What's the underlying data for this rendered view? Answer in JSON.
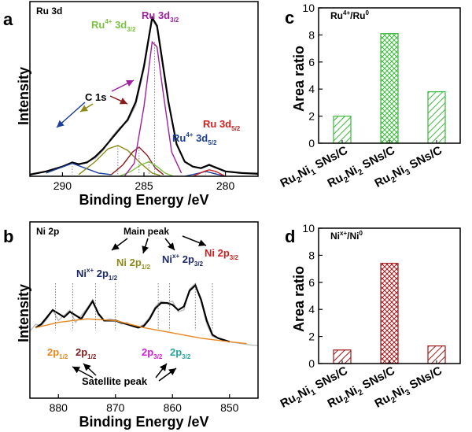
{
  "colors": {
    "ru_total": "#000000",
    "ru_4p_32": "#7cc242",
    "ru_0_32": "#a020a0",
    "ru_c1s": "#8b1a1a",
    "ru_olive": "#8b8b16",
    "ru_blue": "#1c3f9b",
    "ni_fit": "#000000",
    "ni_raw": "#bdbdbd",
    "ni_bg": "#e8871e",
    "ni_teal": "#2aa198",
    "ni_magenta": "#d020d0",
    "ni_dark": "#7a1a1a",
    "bar_green": "#3cb83c",
    "bar_red": "#a01818"
  },
  "panels": {
    "a": {
      "letter": "a",
      "corner_label": "Ru 3d",
      "ann_ru4_32_main": "Ru",
      "ann_ru4_32_sup": "4+",
      "ann_ru4_32_rest": " 3d",
      "ann_ru4_32_sub": "3/2",
      "ann_ru0_32_main": "Ru 3d",
      "ann_ru0_32_sub": "3/2",
      "ann_c1s": "C 1s",
      "ann_ru4_52_main": "Ru",
      "ann_ru4_52_sup": "4+",
      "ann_ru4_52_rest": " 3d",
      "ann_ru4_52_sub": "5/2",
      "ann_ru0_52_main": "Ru 3d",
      "ann_ru0_52_sub": "5/2"
    },
    "b": {
      "letter": "b",
      "corner_label": "Ni 2p",
      "ann_main_peak": "Main peak",
      "ann_nix_12_main": "Ni",
      "ann_nix_12_sup": "x+",
      "ann_nix_12_rest": " 2p",
      "ann_nix_12_sub": "1/2",
      "ann_ni0_12_main": "Ni 2p",
      "ann_ni0_12_sub": "1/2",
      "ann_nix_32_main": "Ni",
      "ann_nix_32_sup": "x+",
      "ann_nix_32_rest": " 2p",
      "ann_nix_32_sub": "3/2",
      "ann_ni0_32_main": "Ni 2p",
      "ann_ni0_32_sub": "3/2",
      "sat1_main": "2p",
      "sat1_sub": "1/2",
      "sat2_main": "2p",
      "sat2_sub": "1/2",
      "sat3_main": "2p",
      "sat3_sub": "3/2",
      "sat4_main": "2p",
      "sat4_sub": "3/2",
      "ann_satellite": "Satellite peak"
    },
    "c": {
      "letter": "c",
      "corner_main": "Ru",
      "corner_sup1": "4+",
      "corner_mid": "/Ru",
      "corner_sup2": "0"
    },
    "d": {
      "letter": "d",
      "corner_main": "Ni",
      "corner_sup1": "x+",
      "corner_mid": "/Ni",
      "corner_sup2": "0"
    },
    "sample_labels": [
      {
        "p1": "Ru",
        "s1": "2",
        "p2": "Ni",
        "s2": "1",
        "tail": " SNs/C"
      },
      {
        "p1": "Ru",
        "s1": "2",
        "p2": "Ni",
        "s2": "2",
        "tail": " SNs/C"
      },
      {
        "p1": "Ru",
        "s1": "2",
        "p2": "Ni",
        "s2": "3",
        "tail": " SNs/C"
      }
    ]
  },
  "chart_data": [
    {
      "panel": "a",
      "type": "line",
      "title": "Ru 3d",
      "xlabel": "Binding Energy /eV",
      "ylabel": "Intensity",
      "xlim": [
        292,
        278
      ],
      "ylim": [
        0,
        1.08
      ],
      "x_reversed": true,
      "xticks": [
        290,
        285,
        280
      ],
      "series": [
        {
          "name": "raw",
          "color": "#b0b0b0",
          "points": [
            [
              292,
              0.015
            ],
            [
              291,
              0.03
            ],
            [
              290,
              0.06
            ],
            [
              289.4,
              0.09
            ],
            [
              289,
              0.07
            ],
            [
              288,
              0.11
            ],
            [
              287.5,
              0.16
            ],
            [
              287,
              0.24
            ],
            [
              286.5,
              0.3
            ],
            [
              286,
              0.34
            ],
            [
              285.5,
              0.44
            ],
            [
              285,
              0.66
            ],
            [
              284.5,
              0.97
            ],
            [
              284.2,
              0.92
            ],
            [
              284,
              0.78
            ],
            [
              283.5,
              0.45
            ],
            [
              283,
              0.2
            ],
            [
              282.5,
              0.09
            ],
            [
              282,
              0.06
            ],
            [
              281.5,
              0.05
            ],
            [
              281,
              0.075
            ],
            [
              280.5,
              0.05
            ],
            [
              280,
              0.03
            ],
            [
              279,
              0.02
            ],
            [
              278,
              0.02
            ]
          ]
        },
        {
          "name": "fit_total",
          "color": "#000000",
          "points": [
            [
              292,
              0.01
            ],
            [
              291,
              0.03
            ],
            [
              290,
              0.06
            ],
            [
              289.4,
              0.085
            ],
            [
              289,
              0.075
            ],
            [
              288.5,
              0.085
            ],
            [
              288,
              0.12
            ],
            [
              287.5,
              0.17
            ],
            [
              287,
              0.23
            ],
            [
              286.5,
              0.29
            ],
            [
              286,
              0.35
            ],
            [
              285.5,
              0.46
            ],
            [
              285,
              0.68
            ],
            [
              284.5,
              0.98
            ],
            [
              284.2,
              0.93
            ],
            [
              284,
              0.8
            ],
            [
              283.5,
              0.46
            ],
            [
              283,
              0.2
            ],
            [
              282.5,
              0.09
            ],
            [
              282,
              0.06
            ],
            [
              281.5,
              0.05
            ],
            [
              281,
              0.07
            ],
            [
              280.5,
              0.05
            ],
            [
              280,
              0.03
            ],
            [
              279,
              0.02
            ],
            [
              278,
              0.015
            ]
          ]
        },
        {
          "name": "C 1s (blue)",
          "color": "#1c3f9b",
          "points": [
            [
              291,
              0.02
            ],
            [
              290.2,
              0.05
            ],
            [
              289.4,
              0.08
            ],
            [
              288.6,
              0.05
            ],
            [
              287.8,
              0.02
            ],
            [
              287,
              0.01
            ]
          ]
        },
        {
          "name": "olive",
          "color": "#8b8b16",
          "points": [
            [
              289,
              0.01
            ],
            [
              288,
              0.09
            ],
            [
              287.2,
              0.17
            ],
            [
              286.6,
              0.19
            ],
            [
              286,
              0.16
            ],
            [
              285.2,
              0.08
            ],
            [
              284.5,
              0.02
            ],
            [
              284,
              0.005
            ]
          ]
        },
        {
          "name": "C 1s (dark red)",
          "color": "#8b1a1a",
          "points": [
            [
              287,
              0.01
            ],
            [
              286.3,
              0.07
            ],
            [
              285.7,
              0.15
            ],
            [
              285.3,
              0.18
            ],
            [
              284.8,
              0.13
            ],
            [
              284.3,
              0.05
            ],
            [
              283.8,
              0.01
            ]
          ]
        },
        {
          "name": "Ru4+ 3d3/2",
          "color": "#7cc242",
          "points": [
            [
              286.5,
              0.0
            ],
            [
              285.8,
              0.03
            ],
            [
              285.2,
              0.07
            ],
            [
              284.7,
              0.09
            ],
            [
              284.2,
              0.06
            ],
            [
              283.7,
              0.02
            ],
            [
              283.2,
              0.0
            ]
          ]
        },
        {
          "name": "Ru 3d3/2",
          "color": "#a020a0",
          "points": [
            [
              286.2,
              0.0
            ],
            [
              285.6,
              0.08
            ],
            [
              285,
              0.43
            ],
            [
              284.5,
              0.83
            ],
            [
              284.2,
              0.8
            ],
            [
              283.8,
              0.5
            ],
            [
              283.3,
              0.15
            ],
            [
              282.7,
              0.02
            ]
          ]
        },
        {
          "name": "Ru4+ 3d5/2",
          "color": "#1c3f9b",
          "points": [
            [
              282.5,
              0.0
            ],
            [
              281.6,
              0.02
            ],
            [
              281.2,
              0.03
            ],
            [
              280.8,
              0.02
            ],
            [
              280,
              0.0
            ]
          ]
        },
        {
          "name": "Ru 3d5/2",
          "color": "#d02020",
          "points": [
            [
              282,
              0.0
            ],
            [
              281.3,
              0.03
            ],
            [
              281,
              0.04
            ],
            [
              280.6,
              0.03
            ],
            [
              280,
              0.0
            ]
          ]
        }
      ]
    },
    {
      "panel": "b",
      "type": "line",
      "title": "Ni 2p",
      "xlabel": "Binding Energy /eV",
      "ylabel": "Intensity",
      "xlim": [
        885,
        845
      ],
      "ylim": [
        0,
        1.0
      ],
      "x_reversed": true,
      "xticks": [
        880,
        870,
        860,
        850
      ],
      "series": [
        {
          "name": "raw",
          "color": "#bdbdbd",
          "points": [
            [
              885,
              0.38
            ],
            [
              884,
              0.42
            ],
            [
              883,
              0.41
            ],
            [
              882,
              0.45
            ],
            [
              881,
              0.5
            ],
            [
              880,
              0.44
            ],
            [
              879,
              0.47
            ],
            [
              878,
              0.5
            ],
            [
              877,
              0.43
            ],
            [
              876,
              0.47
            ],
            [
              875,
              0.51
            ],
            [
              874,
              0.56
            ],
            [
              873,
              0.47
            ],
            [
              872,
              0.44
            ],
            [
              871,
              0.45
            ],
            [
              870,
              0.44
            ],
            [
              869,
              0.42
            ],
            [
              868,
              0.43
            ],
            [
              867,
              0.41
            ],
            [
              866,
              0.4
            ],
            [
              865,
              0.42
            ],
            [
              864,
              0.46
            ],
            [
              863,
              0.52
            ],
            [
              862,
              0.55
            ],
            [
              861,
              0.54
            ],
            [
              860,
              0.55
            ],
            [
              859,
              0.49
            ],
            [
              858,
              0.5
            ],
            [
              857,
              0.62
            ],
            [
              856,
              0.65
            ],
            [
              855,
              0.55
            ],
            [
              854,
              0.42
            ],
            [
              853,
              0.35
            ],
            [
              852,
              0.34
            ],
            [
              851,
              0.33
            ],
            [
              850,
              0.32
            ],
            [
              848,
              0.31
            ],
            [
              846,
              0.3
            ],
            [
              845,
              0.3
            ]
          ]
        },
        {
          "name": "fit",
          "color": "#000000",
          "points": [
            [
              884,
              0.4
            ],
            [
              883,
              0.42
            ],
            [
              882,
              0.46
            ],
            [
              881,
              0.5
            ],
            [
              880,
              0.48
            ],
            [
              879,
              0.46
            ],
            [
              878,
              0.49
            ],
            [
              877,
              0.47
            ],
            [
              876,
              0.45
            ],
            [
              875,
              0.5
            ],
            [
              874,
              0.55
            ],
            [
              873,
              0.48
            ],
            [
              872,
              0.44
            ],
            [
              871,
              0.44
            ],
            [
              870,
              0.44
            ],
            [
              869,
              0.43
            ],
            [
              868,
              0.42
            ],
            [
              867,
              0.41
            ],
            [
              866,
              0.4
            ],
            [
              865,
              0.41
            ],
            [
              864,
              0.45
            ],
            [
              863,
              0.51
            ],
            [
              862,
              0.54
            ],
            [
              861,
              0.54
            ],
            [
              860,
              0.53
            ],
            [
              859,
              0.5
            ],
            [
              858,
              0.52
            ],
            [
              857,
              0.61
            ],
            [
              856,
              0.64
            ],
            [
              855,
              0.56
            ],
            [
              854,
              0.44
            ],
            [
              853,
              0.36
            ],
            [
              852,
              0.34
            ],
            [
              851,
              0.33
            ],
            [
              850,
              0.32
            ]
          ]
        },
        {
          "name": "background",
          "color": "#e8871e",
          "points": [
            [
              884,
              0.4
            ],
            [
              880,
              0.43
            ],
            [
              875,
              0.45
            ],
            [
              870,
              0.44
            ],
            [
              865,
              0.4
            ],
            [
              860,
              0.37
            ],
            [
              855,
              0.34
            ],
            [
              850,
              0.32
            ],
            [
              847,
              0.31
            ]
          ]
        }
      ]
    },
    {
      "panel": "c",
      "type": "bar",
      "title": "Ru4+/Ru0",
      "ylabel": "Area ratio",
      "categories": [
        "Ru2Ni1 SNs/C",
        "Ru2Ni2 SNs/C",
        "Ru2Ni3 SNs/C"
      ],
      "values": [
        2.0,
        8.1,
        3.8
      ],
      "ylim": [
        0,
        10
      ],
      "yticks": [
        0,
        2,
        4,
        6,
        8,
        10
      ]
    },
    {
      "panel": "d",
      "type": "bar",
      "title": "Nix+/Ni0",
      "ylabel": "Area ratio",
      "categories": [
        "Ru2Ni1 SNs/C",
        "Ru2Ni2 SNs/C",
        "Ru2Ni3 SNs/C"
      ],
      "values": [
        1.0,
        7.4,
        1.3
      ],
      "ylim": [
        0,
        10
      ],
      "yticks": [
        0,
        2,
        4,
        6,
        8,
        10
      ]
    }
  ]
}
